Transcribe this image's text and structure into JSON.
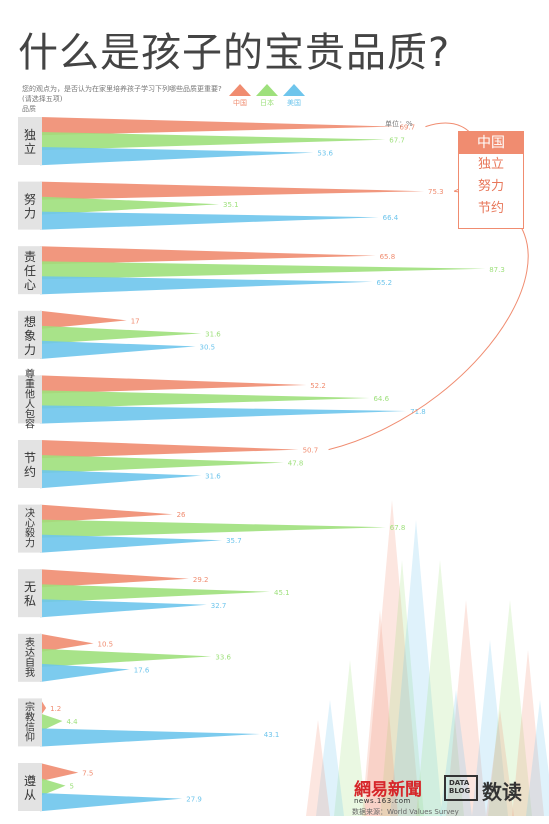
{
  "header": {
    "title": "什么是孩子的宝贵品质?",
    "question_line1": "您的观点为，是否认为在家里培养孩子学习下列哪些品质更重要?",
    "question_line2": "(请选择五项)",
    "column_label": "品质",
    "unit_label": "单位：%"
  },
  "legend": [
    {
      "name": "中国",
      "color": "#f08c70"
    },
    {
      "name": "日本",
      "color": "#9ee07c"
    },
    {
      "name": "美国",
      "color": "#6ec5ec"
    }
  ],
  "inset": {
    "head": "中国",
    "items": [
      "独立",
      "努力",
      "节约"
    ]
  },
  "footer": {
    "netease": "網易新聞",
    "netease_url": "news.163.com",
    "datablog_line1": "DATA",
    "datablog_line2": "BLOG",
    "shudu": "数读",
    "source": "数据来源：World Values Survey"
  },
  "chart_data": {
    "type": "bar",
    "title": "什么是孩子的宝贵品质?",
    "ylabel": "品质",
    "unit": "%",
    "xlim": [
      0,
      100
    ],
    "categories": [
      "独立",
      "努力",
      "责任心",
      "想象力",
      "尊重他人包容",
      "节约",
      "决心毅力",
      "无私",
      "表达自我",
      "宗教信仰",
      "遵从"
    ],
    "series": [
      {
        "name": "中国",
        "color": "#f08c70",
        "values": [
          69.7,
          75.3,
          65.8,
          17,
          52.2,
          50.7,
          26,
          29.2,
          10.5,
          1.2,
          7.5
        ]
      },
      {
        "name": "日本",
        "color": "#9ee07c",
        "values": [
          67.7,
          35.1,
          87.3,
          31.6,
          64.6,
          47.8,
          67.8,
          45.1,
          33.6,
          4.4,
          5
        ]
      },
      {
        "name": "美国",
        "color": "#6ec5ec",
        "values": [
          53.6,
          66.4,
          65.2,
          30.5,
          71.8,
          31.6,
          35.7,
          32.7,
          17.6,
          43.1,
          27.9
        ]
      }
    ],
    "value_labels": [
      [
        "69.7",
        "67.7",
        "53.6"
      ],
      [
        "75.3",
        "35.1",
        "66.4"
      ],
      [
        "65.8",
        "87.3",
        "65.2"
      ],
      [
        "17",
        "31.6",
        "30.5"
      ],
      [
        "52.2",
        "64.6",
        "71.8"
      ],
      [
        "50.7",
        "47.8",
        "31.6"
      ],
      [
        "26",
        "67.8",
        "35.7"
      ],
      [
        "29.2",
        "45.1",
        "32.7"
      ],
      [
        "10.5",
        "33.6",
        "17.6"
      ],
      [
        "1.2",
        "4.4",
        "43.1"
      ],
      [
        "7.5",
        "5",
        "27.9"
      ]
    ]
  }
}
